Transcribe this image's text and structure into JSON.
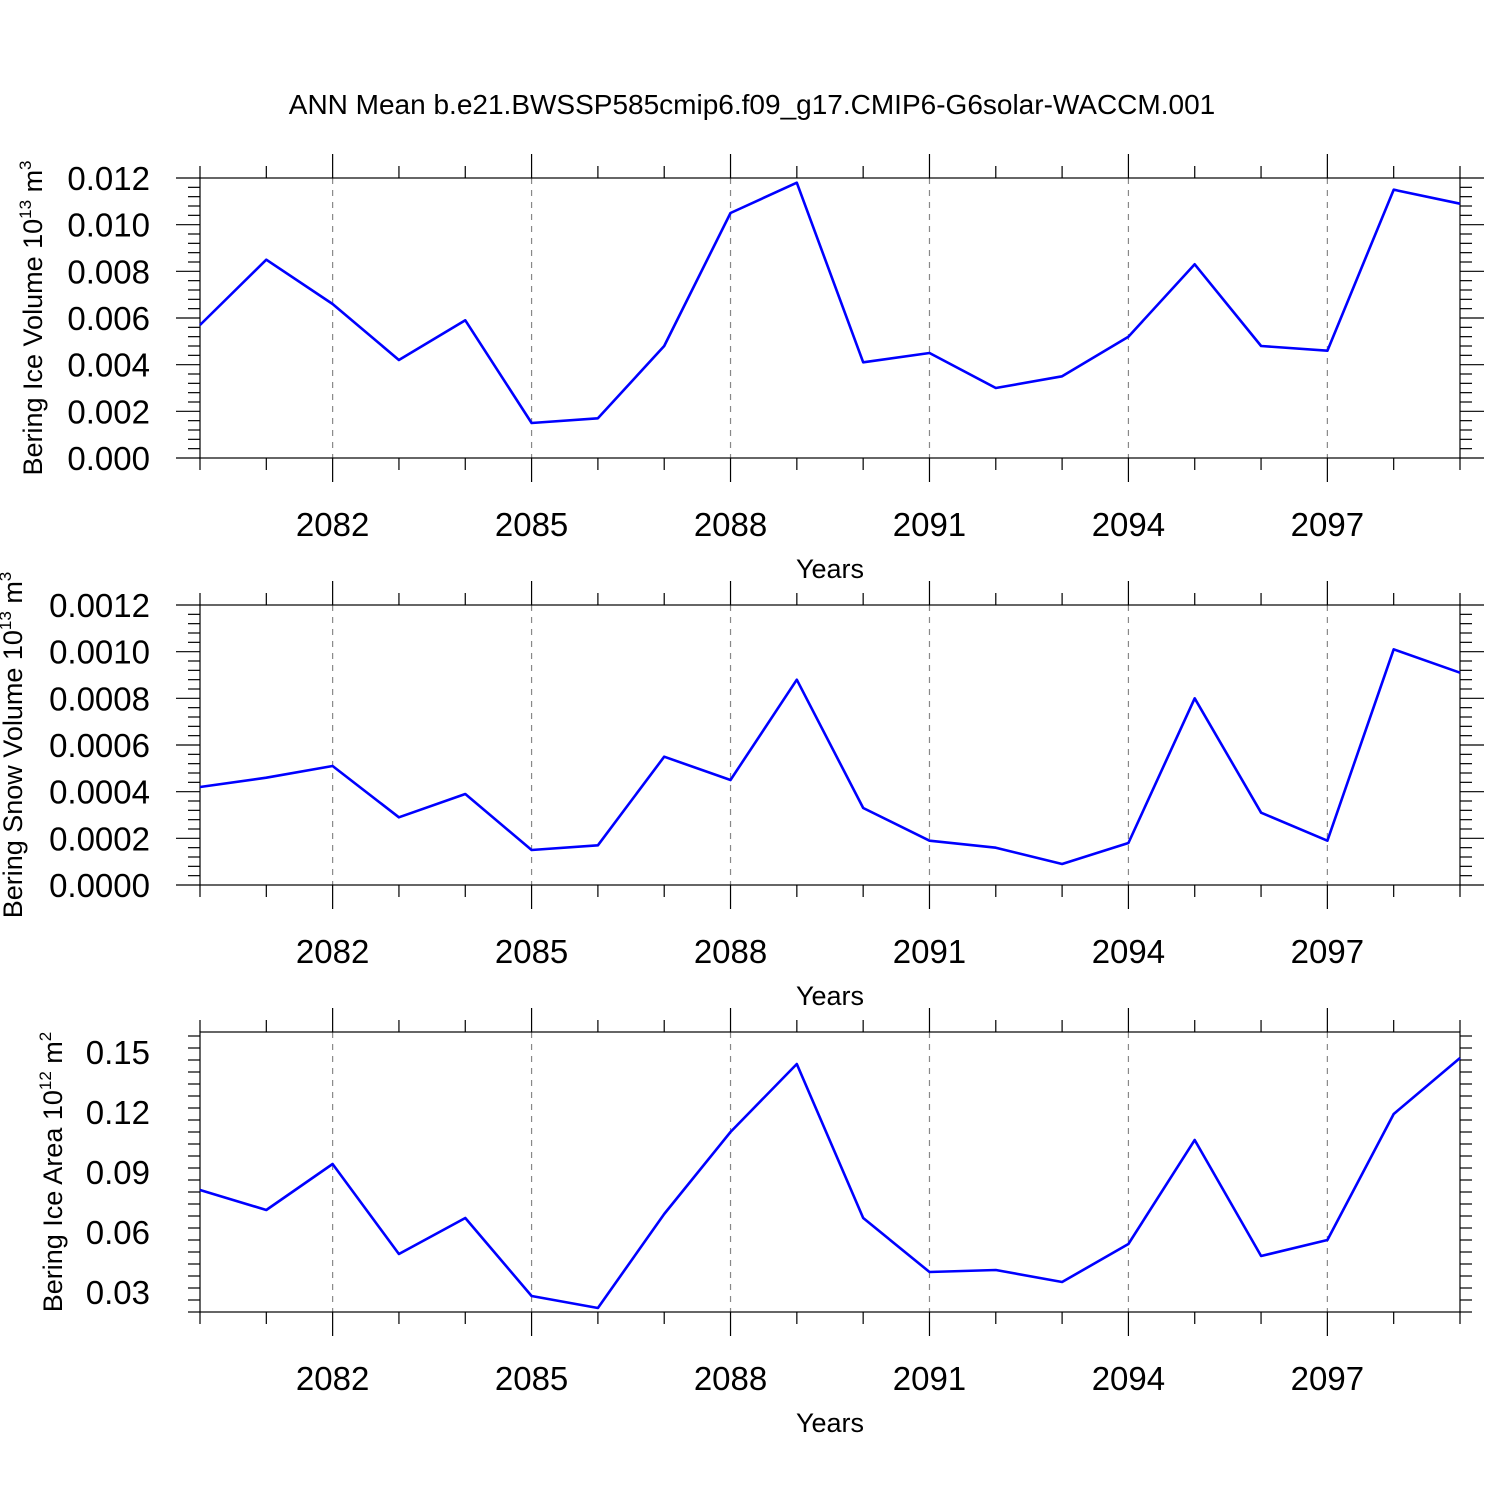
{
  "title": "ANN Mean b.e21.BWSSP585cmip6.f09_g17.CMIP6-G6solar-WACCM.001",
  "colors": {
    "series": "#0000ff",
    "grid": "#888888"
  },
  "chart_data": [
    {
      "type": "line",
      "ylabel": {
        "text": "Bering Ice Volume 10",
        "exp": "13",
        "unit": " m",
        "unit_exp": "3"
      },
      "xlabel": "Years",
      "xlim": [
        2080,
        2099
      ],
      "ylim": [
        0,
        0.012
      ],
      "yticks": [
        "0.000",
        "0.002",
        "0.004",
        "0.006",
        "0.008",
        "0.010",
        "0.012"
      ],
      "ytick_values": [
        0,
        0.002,
        0.004,
        0.006,
        0.008,
        0.01,
        0.012
      ],
      "xticks": [
        "2082",
        "2085",
        "2088",
        "2091",
        "2094",
        "2097"
      ],
      "xtick_values": [
        2082,
        2085,
        2088,
        2091,
        2094,
        2097
      ],
      "grid": "vertical-dashed",
      "x": [
        2080,
        2081,
        2082,
        2083,
        2084,
        2085,
        2086,
        2087,
        2088,
        2089,
        2090,
        2091,
        2092,
        2093,
        2094,
        2095,
        2096,
        2097,
        2098,
        2099
      ],
      "series": [
        {
          "values": [
            0.0057,
            0.0085,
            0.0066,
            0.0042,
            0.0059,
            0.0015,
            0.0017,
            0.0048,
            0.0105,
            0.0118,
            0.0041,
            0.0045,
            0.003,
            0.0035,
            0.0052,
            0.0083,
            0.0048,
            0.0046,
            0.0115,
            0.0109
          ]
        }
      ]
    },
    {
      "type": "line",
      "ylabel": {
        "text": "Bering Snow Volume 10",
        "exp": "13",
        "unit": " m",
        "unit_exp": "3"
      },
      "xlabel": "Years",
      "xlim": [
        2080,
        2099
      ],
      "ylim": [
        0,
        0.0012
      ],
      "yticks": [
        "0.0000",
        "0.0002",
        "0.0004",
        "0.0006",
        "0.0008",
        "0.0010",
        "0.0012"
      ],
      "ytick_values": [
        0,
        0.0002,
        0.0004,
        0.0006,
        0.0008,
        0.001,
        0.0012
      ],
      "xticks": [
        "2082",
        "2085",
        "2088",
        "2091",
        "2094",
        "2097"
      ],
      "xtick_values": [
        2082,
        2085,
        2088,
        2091,
        2094,
        2097
      ],
      "grid": "vertical-dashed",
      "x": [
        2080,
        2081,
        2082,
        2083,
        2084,
        2085,
        2086,
        2087,
        2088,
        2089,
        2090,
        2091,
        2092,
        2093,
        2094,
        2095,
        2096,
        2097,
        2098,
        2099
      ],
      "series": [
        {
          "values": [
            0.00042,
            0.00046,
            0.00051,
            0.00029,
            0.00039,
            0.00015,
            0.00017,
            0.00055,
            0.00045,
            0.00088,
            0.00033,
            0.00019,
            0.00016,
            9e-05,
            0.00018,
            0.0008,
            0.00031,
            0.00019,
            0.00101,
            0.00091
          ]
        }
      ]
    },
    {
      "type": "line",
      "ylabel": {
        "text": "Bering Ice Area 10",
        "exp": "12",
        "unit": " m",
        "unit_exp": "2"
      },
      "xlabel": "Years",
      "xlim": [
        2080,
        2099
      ],
      "ylim": [
        0.02,
        0.16
      ],
      "yticks": [
        "0.03",
        "0.06",
        "0.09",
        "0.12",
        "0.15"
      ],
      "ytick_values": [
        0.03,
        0.06,
        0.09,
        0.12,
        0.15
      ],
      "xticks": [
        "2082",
        "2085",
        "2088",
        "2091",
        "2094",
        "2097"
      ],
      "xtick_values": [
        2082,
        2085,
        2088,
        2091,
        2094,
        2097
      ],
      "grid": "vertical-dashed",
      "x": [
        2080,
        2081,
        2082,
        2083,
        2084,
        2085,
        2086,
        2087,
        2088,
        2089,
        2090,
        2091,
        2092,
        2093,
        2094,
        2095,
        2096,
        2097,
        2098,
        2099
      ],
      "series": [
        {
          "values": [
            0.081,
            0.071,
            0.094,
            0.049,
            0.067,
            0.028,
            0.022,
            0.069,
            0.11,
            0.144,
            0.067,
            0.04,
            0.041,
            0.035,
            0.054,
            0.106,
            0.048,
            0.056,
            0.119,
            0.147
          ]
        }
      ]
    }
  ]
}
